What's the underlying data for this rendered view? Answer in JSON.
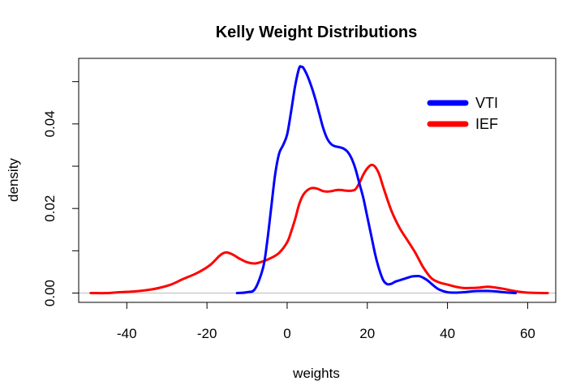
{
  "chart_data": {
    "type": "line",
    "title": "Kelly Weight Distributions",
    "xlabel": "weights",
    "ylabel": "density",
    "xlim": [
      -52,
      67
    ],
    "ylim": [
      -0.0022,
      0.0555
    ],
    "x_ticks": [
      -40,
      -20,
      0,
      20,
      40,
      60
    ],
    "x_tick_labels": [
      "-40",
      "-20",
      "0",
      "20",
      "40",
      "60"
    ],
    "y_ticks": [
      0.0,
      0.02,
      0.04
    ],
    "y_tick_labels": [
      "0.00",
      "0.02",
      "0.04"
    ],
    "grid": false,
    "zero_line": true,
    "legend": {
      "position": "top-right"
    },
    "series": [
      {
        "name": "VTI",
        "color": "#0000ff",
        "points": [
          [
            -12.5,
            0.0
          ],
          [
            -10,
            0.0002
          ],
          [
            -8,
            0.001
          ],
          [
            -6,
            0.006
          ],
          [
            -5,
            0.012
          ],
          [
            -4,
            0.02
          ],
          [
            -3,
            0.028
          ],
          [
            -2,
            0.033
          ],
          [
            -1,
            0.035
          ],
          [
            0,
            0.0375
          ],
          [
            1,
            0.043
          ],
          [
            2,
            0.049
          ],
          [
            3,
            0.0532
          ],
          [
            3.5,
            0.0535
          ],
          [
            4,
            0.0533
          ],
          [
            5,
            0.0515
          ],
          [
            6,
            0.049
          ],
          [
            7,
            0.046
          ],
          [
            8,
            0.0425
          ],
          [
            9,
            0.039
          ],
          [
            10,
            0.0365
          ],
          [
            11,
            0.0352
          ],
          [
            12,
            0.0347
          ],
          [
            13,
            0.0345
          ],
          [
            14,
            0.0342
          ],
          [
            15,
            0.0335
          ],
          [
            16,
            0.032
          ],
          [
            17,
            0.0295
          ],
          [
            18,
            0.026
          ],
          [
            19,
            0.0225
          ],
          [
            20,
            0.018
          ],
          [
            21,
            0.0135
          ],
          [
            22,
            0.009
          ],
          [
            23,
            0.0055
          ],
          [
            24,
            0.003
          ],
          [
            25,
            0.0021
          ],
          [
            26,
            0.0022
          ],
          [
            27,
            0.0027
          ],
          [
            28,
            0.003
          ],
          [
            29,
            0.0033
          ],
          [
            30,
            0.0036
          ],
          [
            31,
            0.0039
          ],
          [
            32,
            0.004
          ],
          [
            33,
            0.004
          ],
          [
            34,
            0.0036
          ],
          [
            35,
            0.003
          ],
          [
            36,
            0.0022
          ],
          [
            37,
            0.0014
          ],
          [
            38,
            0.0008
          ],
          [
            40,
            0.0002
          ],
          [
            42,
            0.0001
          ],
          [
            44,
            0.0002
          ],
          [
            46,
            0.0004
          ],
          [
            48,
            0.0005
          ],
          [
            50,
            0.0005
          ],
          [
            52,
            0.0004
          ],
          [
            54,
            0.0002
          ],
          [
            57,
            0.0
          ]
        ]
      },
      {
        "name": "IEF",
        "color": "#ff0000",
        "points": [
          [
            -49,
            0.0
          ],
          [
            -45,
            0.0
          ],
          [
            -42,
            0.0002
          ],
          [
            -38,
            0.0004
          ],
          [
            -35,
            0.0007
          ],
          [
            -32,
            0.0012
          ],
          [
            -29,
            0.002
          ],
          [
            -26,
            0.0033
          ],
          [
            -23,
            0.0045
          ],
          [
            -21,
            0.0055
          ],
          [
            -19,
            0.0068
          ],
          [
            -17,
            0.0087
          ],
          [
            -16,
            0.0094
          ],
          [
            -15,
            0.0096
          ],
          [
            -14,
            0.0093
          ],
          [
            -13,
            0.0088
          ],
          [
            -12,
            0.0082
          ],
          [
            -10,
            0.0073
          ],
          [
            -8,
            0.007
          ],
          [
            -6,
            0.0075
          ],
          [
            -4,
            0.0083
          ],
          [
            -2,
            0.0095
          ],
          [
            0,
            0.012
          ],
          [
            1,
            0.0145
          ],
          [
            2,
            0.0175
          ],
          [
            3,
            0.021
          ],
          [
            4,
            0.0232
          ],
          [
            5,
            0.0243
          ],
          [
            6,
            0.0248
          ],
          [
            7,
            0.0248
          ],
          [
            8,
            0.0245
          ],
          [
            9,
            0.0241
          ],
          [
            10,
            0.024
          ],
          [
            11,
            0.0241
          ],
          [
            12,
            0.0243
          ],
          [
            13,
            0.0244
          ],
          [
            14,
            0.0243
          ],
          [
            15,
            0.0242
          ],
          [
            16,
            0.0242
          ],
          [
            17,
            0.0245
          ],
          [
            18,
            0.026
          ],
          [
            19,
            0.028
          ],
          [
            20,
            0.0295
          ],
          [
            21,
            0.0303
          ],
          [
            22,
            0.0298
          ],
          [
            23,
            0.028
          ],
          [
            24,
            0.025
          ],
          [
            26,
            0.0195
          ],
          [
            28,
            0.0155
          ],
          [
            30,
            0.0125
          ],
          [
            32,
            0.0095
          ],
          [
            34,
            0.006
          ],
          [
            36,
            0.0035
          ],
          [
            38,
            0.0025
          ],
          [
            40,
            0.002
          ],
          [
            42,
            0.0015
          ],
          [
            44,
            0.0012
          ],
          [
            46,
            0.0012
          ],
          [
            48,
            0.0013
          ],
          [
            50,
            0.0015
          ],
          [
            52,
            0.0013
          ],
          [
            54,
            0.001
          ],
          [
            56,
            0.0006
          ],
          [
            58,
            0.0003
          ],
          [
            60,
            0.0001
          ],
          [
            65,
            0.0
          ]
        ]
      }
    ]
  }
}
